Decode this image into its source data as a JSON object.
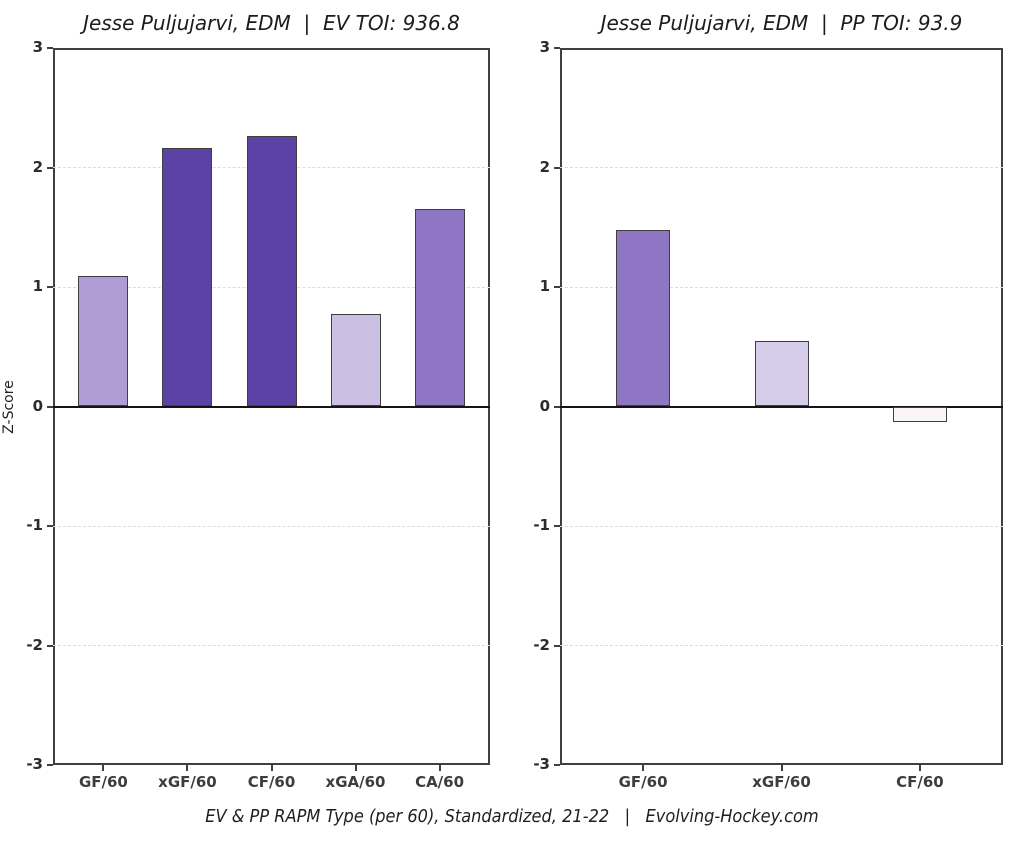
{
  "figure": {
    "background": "#ffffff",
    "ylabel": "Z-Score",
    "caption": "EV & PP RAPM Type (per 60), Standardized, 21-22   |   Evolving-Hockey.com"
  },
  "colors": {
    "plot_border": "#3f3f3f",
    "zero_line": "#141414",
    "gridline": "#dcdcdc",
    "tick_label": "#2b2b2b",
    "x_label": "#3d3d3d",
    "dark_purple": "#5b42a4",
    "medium_purple": "#8f76c4",
    "light_purple": "#b09dd6",
    "pale_purple": "#cbbfe4",
    "pale_lavender": "#d5cde9",
    "near_white_pink": "#faf5f7"
  },
  "chart_data": [
    {
      "type": "bar",
      "title": "Jesse Puljujarvi, EDM  |  EV TOI: 936.8",
      "categories": [
        "GF/60",
        "xGF/60",
        "CF/60",
        "xGA/60",
        "CA/60"
      ],
      "values": [
        1.09,
        2.16,
        2.26,
        0.77,
        1.65
      ],
      "bar_colors": [
        "#b09dd6",
        "#5b42a4",
        "#5b42a4",
        "#cbbfe4",
        "#8f76c4"
      ],
      "ylabel": "Z-Score",
      "xlabel": "",
      "ylim": [
        -3,
        3
      ],
      "yticks": [
        3,
        2,
        1,
        0,
        -1,
        -2,
        -3
      ],
      "grid": "horizontal dashed at -2,-1,1,2; solid zero line",
      "legend": "none"
    },
    {
      "type": "bar",
      "title": "Jesse Puljujarvi, EDM  |  PP TOI: 93.9",
      "categories": [
        "GF/60",
        "xGF/60",
        "CF/60"
      ],
      "values": [
        1.48,
        0.55,
        -0.13
      ],
      "bar_colors": [
        "#8f76c4",
        "#d5cde9",
        "#faf5f7"
      ],
      "ylabel": "",
      "xlabel": "",
      "ylim": [
        -3,
        3
      ],
      "yticks": [
        3,
        2,
        1,
        0,
        -1,
        -2,
        -3
      ],
      "grid": "horizontal dashed at -2,-1,1,2; solid zero line",
      "legend": "none"
    }
  ]
}
